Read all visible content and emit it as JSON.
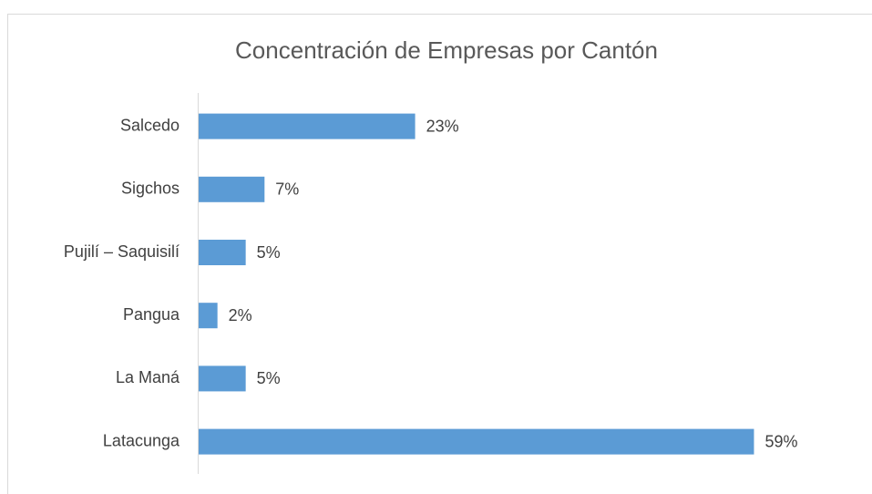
{
  "chart_data": {
    "type": "barh",
    "title": "Concentración de Empresas por Cantón",
    "categories": [
      "Salcedo",
      "Sigchos",
      "Pujilí – Saquisilí",
      "Pangua",
      "La Maná",
      "Latacunga"
    ],
    "values": [
      23,
      7,
      5,
      2,
      5,
      59
    ],
    "value_labels": [
      "23%",
      "7%",
      "5%",
      "2%",
      "5%",
      "59%"
    ],
    "color": "#5b9bd5"
  }
}
